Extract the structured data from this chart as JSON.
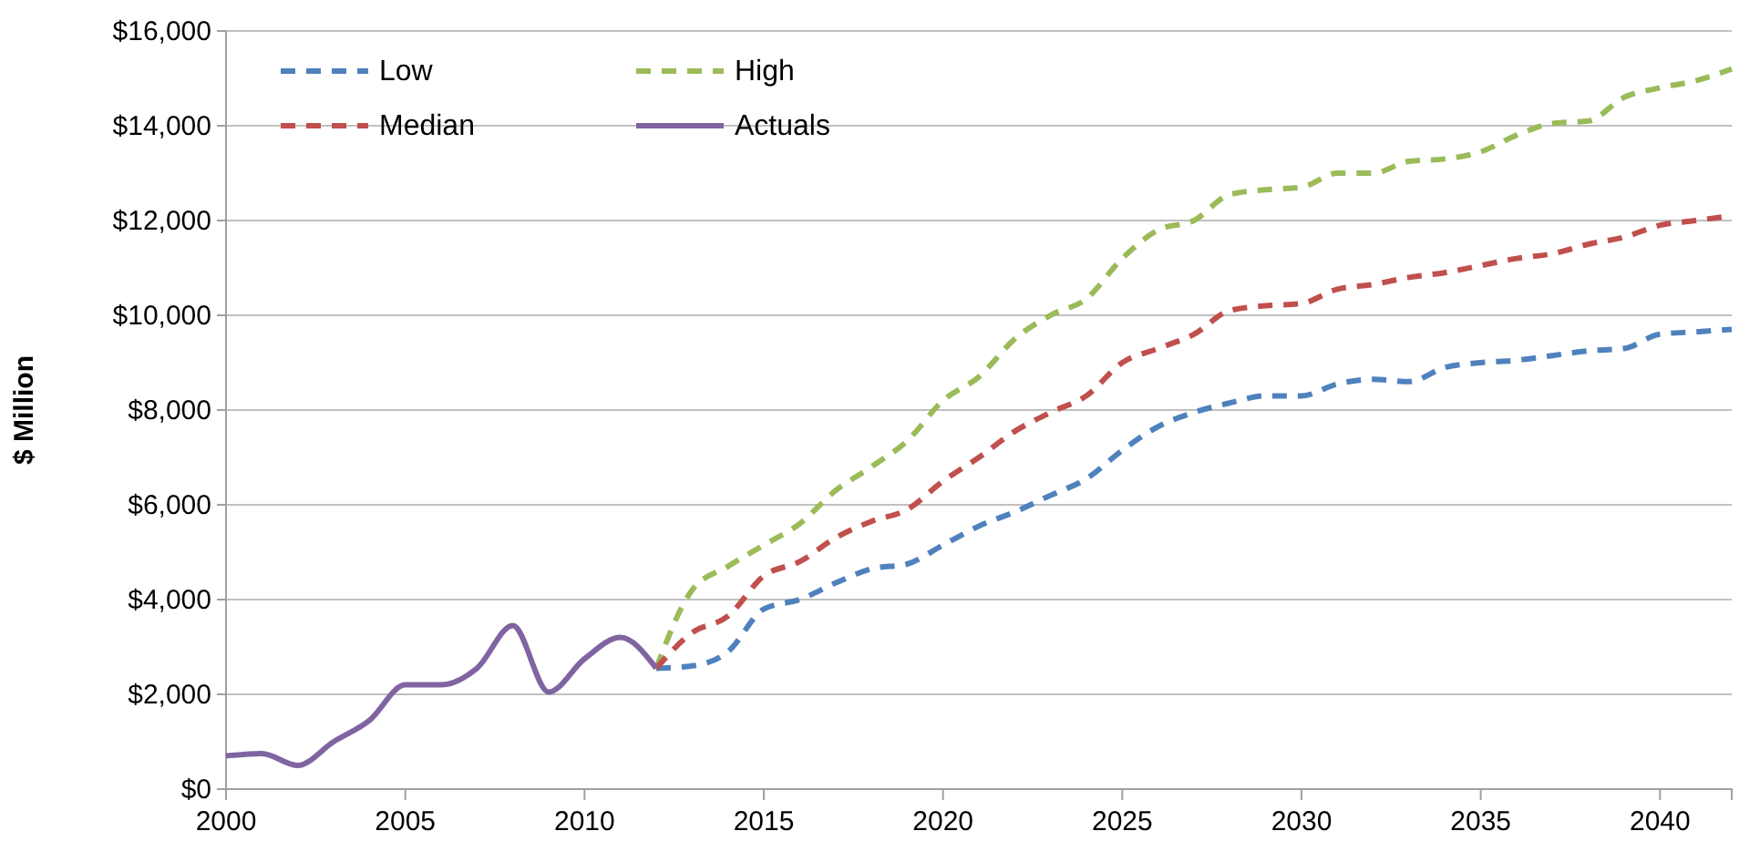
{
  "chart_data": {
    "type": "line",
    "ylabel": "$ Million",
    "legend": "top left",
    "grid": "y",
    "marker": "none",
    "xlim": [
      2000,
      2042
    ],
    "xticks": [
      2000,
      2005,
      2010,
      2015,
      2020,
      2025,
      2030,
      2035,
      2040
    ],
    "ylim": [
      0,
      16000
    ],
    "yticks": [
      {
        "value": 0,
        "label": "$0"
      },
      {
        "value": 2000,
        "label": "$2,000"
      },
      {
        "value": 4000,
        "label": "$4,000"
      },
      {
        "value": 6000,
        "label": "$6,000"
      },
      {
        "value": 8000,
        "label": "$8,000"
      },
      {
        "value": 10000,
        "label": "$10,000"
      },
      {
        "value": 12000,
        "label": "$12,000"
      },
      {
        "value": 14000,
        "label": "$14,000"
      },
      {
        "value": 16000,
        "label": "$16,000"
      }
    ],
    "series": [
      {
        "name": "Low",
        "color": "#4f81bd",
        "line_style": "dashed",
        "x": [
          2012,
          2013,
          2014,
          2015,
          2016,
          2017,
          2018,
          2019,
          2020,
          2021,
          2022,
          2023,
          2024,
          2025,
          2026,
          2027,
          2028,
          2029,
          2030,
          2031,
          2032,
          2033,
          2034,
          2035,
          2036,
          2037,
          2038,
          2039,
          2040,
          2041,
          2042
        ],
        "values": [
          2550,
          2600,
          2900,
          3800,
          4000,
          4350,
          4650,
          4750,
          5150,
          5550,
          5850,
          6200,
          6550,
          7150,
          7650,
          7950,
          8150,
          8300,
          8300,
          8550,
          8650,
          8600,
          8900,
          9000,
          9050,
          9150,
          9250,
          9300,
          9600,
          9650,
          9700
        ]
      },
      {
        "name": "High",
        "color": "#9bbb59",
        "line_style": "dashed",
        "x": [
          2012,
          2013,
          2014,
          2015,
          2016,
          2017,
          2018,
          2019,
          2020,
          2021,
          2022,
          2023,
          2024,
          2025,
          2026,
          2027,
          2028,
          2029,
          2030,
          2031,
          2032,
          2033,
          2034,
          2035,
          2036,
          2037,
          2038,
          2039,
          2040,
          2041,
          2042
        ],
        "values": [
          2550,
          4200,
          4700,
          5150,
          5600,
          6300,
          6800,
          7350,
          8200,
          8700,
          9500,
          10000,
          10350,
          11200,
          11800,
          12000,
          12550,
          12650,
          12700,
          13000,
          13000,
          13250,
          13300,
          13450,
          13800,
          14050,
          14100,
          14600,
          14800,
          14950,
          15200
        ]
      },
      {
        "name": "Median",
        "color": "#c0504d",
        "line_style": "dashed",
        "x": [
          2012,
          2013,
          2014,
          2015,
          2016,
          2017,
          2018,
          2019,
          2020,
          2021,
          2022,
          2023,
          2024,
          2025,
          2026,
          2027,
          2028,
          2029,
          2030,
          2031,
          2032,
          2033,
          2034,
          2035,
          2036,
          2037,
          2038,
          2039,
          2040,
          2041,
          2042
        ],
        "values": [
          2550,
          3300,
          3650,
          4500,
          4800,
          5300,
          5650,
          5900,
          6500,
          7000,
          7550,
          7950,
          8300,
          9000,
          9300,
          9600,
          10100,
          10200,
          10250,
          10550,
          10650,
          10800,
          10900,
          11050,
          11200,
          11300,
          11500,
          11650,
          11900,
          12000,
          12100
        ]
      },
      {
        "name": "Actuals",
        "color": "#8064a2",
        "line_style": "solid",
        "x": [
          2000,
          2001,
          2002,
          2003,
          2004,
          2005,
          2006,
          2007,
          2008,
          2009,
          2010,
          2011,
          2012
        ],
        "values": [
          700,
          750,
          500,
          1000,
          1450,
          2200,
          2200,
          2550,
          3450,
          2050,
          2750,
          3200,
          2550
        ]
      }
    ]
  }
}
